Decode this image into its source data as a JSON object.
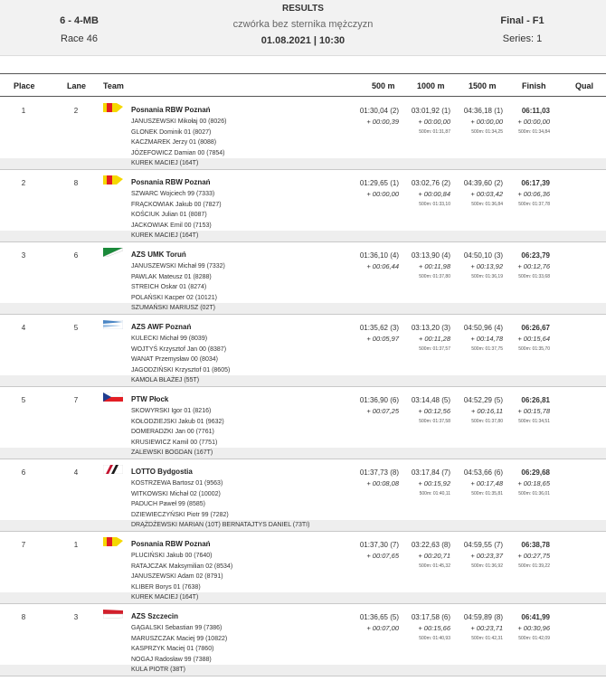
{
  "header": {
    "event_code": "6 - 4-MB",
    "race": "Race 46",
    "title": "RESULTS",
    "event_name": "czwórka bez sternika mężczyzn",
    "date_time": "01.08.2021 | 10:30",
    "final": "Final - F1",
    "series": "Series: 1"
  },
  "columns": {
    "place": "Place",
    "lane": "Lane",
    "team": "Team",
    "s500": "500 m",
    "s1000": "1000 m",
    "s1500": "1500 m",
    "finish": "Finish",
    "qual": "Qual"
  },
  "entries": [
    {
      "place": "1",
      "lane": "2",
      "flag": "poznan",
      "crew": "Posnania RBW Poznań",
      "athletes": [
        "JANUSZEWSKI  Mikołaj 00 (8026)",
        "GLONEK  Dominik 01 (8027)",
        "KACZMAREK  Jerzy 01 (8088)",
        "JÓZEFOWICZ  Damian 00 (7854)"
      ],
      "coach": "KUREK MACIEJ (164T)",
      "splits": [
        {
          "time": "01:30,04 (2)",
          "delta": "+ 00:00,39",
          "pace": ""
        },
        {
          "time": "03:01,92 (1)",
          "delta": "+ 00:00,00",
          "pace": "500m: 01:31,87"
        },
        {
          "time": "04:36,18 (1)",
          "delta": "+ 00:00,00",
          "pace": "500m: 01:34,25"
        },
        {
          "time": "06:11,03",
          "delta": "+ 00:00,00",
          "pace": "500m: 01:34,84"
        }
      ]
    },
    {
      "place": "2",
      "lane": "8",
      "flag": "poznan",
      "crew": "Posnania RBW Poznań",
      "athletes": [
        "SZWARC  Wojciech 99 (7333)",
        "FRĄCKOWIAK  Jakub 00 (7827)",
        "KOŚCIUK  Julian 01 (8087)",
        "JACKOWIAK  Emil 00 (7153)"
      ],
      "coach": "KUREK MACIEJ (164T)",
      "splits": [
        {
          "time": "01:29,65 (1)",
          "delta": "+ 00:00,00",
          "pace": ""
        },
        {
          "time": "03:02,76 (2)",
          "delta": "+ 00:00,84",
          "pace": "500m: 01:33,10"
        },
        {
          "time": "04:39,60 (2)",
          "delta": "+ 00:03,42",
          "pace": "500m: 01:36,84"
        },
        {
          "time": "06:17,39",
          "delta": "+ 00:06,36",
          "pace": "500m: 01:37,78"
        }
      ]
    },
    {
      "place": "3",
      "lane": "6",
      "flag": "torun",
      "crew": "AZS UMK Toruń",
      "athletes": [
        "JANUSZEWSKI  Michał 99 (7332)",
        "PAWLAK  Mateusz 01 (8288)",
        "STREICH  Oskar 01 (8274)",
        "POLAŃSKI  Kacper 02 (10121)"
      ],
      "coach": "SZUMAŃSKI MARIUSZ (02T)",
      "splits": [
        {
          "time": "01:36,10 (4)",
          "delta": "+ 00:06,44",
          "pace": ""
        },
        {
          "time": "03:13,90 (4)",
          "delta": "+ 00:11,98",
          "pace": "500m: 01:37,80"
        },
        {
          "time": "04:50,10 (3)",
          "delta": "+ 00:13,92",
          "pace": "500m: 01:36,19"
        },
        {
          "time": "06:23,79",
          "delta": "+ 00:12,76",
          "pace": "500m: 01:33,68"
        }
      ]
    },
    {
      "place": "4",
      "lane": "5",
      "flag": "awf",
      "crew": "AZS AWF Poznań",
      "athletes": [
        "KULECKI  Michał 99 (8039)",
        "WOJTYŚ  Krzysztof Jan 00 (8387)",
        "WANAT  Przemysław 00 (8034)",
        "JAGODZIŃSKI  Krzysztof 01 (8605)"
      ],
      "coach": "KAMOLA BŁAŻEJ (55T)",
      "splits": [
        {
          "time": "01:35,62 (3)",
          "delta": "+ 00:05,97",
          "pace": ""
        },
        {
          "time": "03:13,20 (3)",
          "delta": "+ 00:11,28",
          "pace": "500m: 01:37,57"
        },
        {
          "time": "04:50,96 (4)",
          "delta": "+ 00:14,78",
          "pace": "500m: 01:37,75"
        },
        {
          "time": "06:26,67",
          "delta": "+ 00:15,64",
          "pace": "500m: 01:35,70"
        }
      ]
    },
    {
      "place": "5",
      "lane": "7",
      "flag": "plock",
      "crew": "PTW Płock",
      "athletes": [
        "SKOWYRSKI  Igor 01 (8216)",
        "KOŁODZIEJSKI  Jakub 01 (9632)",
        "DOMERADZKI  Jan 00 (7761)",
        "KRUSIEWICZ  Kamil 00 (7751)"
      ],
      "coach": "ZALEWSKI BOGDAN (167T)",
      "splits": [
        {
          "time": "01:36,90 (6)",
          "delta": "+ 00:07,25",
          "pace": ""
        },
        {
          "time": "03:14,48 (5)",
          "delta": "+ 00:12,56",
          "pace": "500m: 01:37,58"
        },
        {
          "time": "04:52,29 (5)",
          "delta": "+ 00:16,11",
          "pace": "500m: 01:37,80"
        },
        {
          "time": "06:26,81",
          "delta": "+ 00:15,78",
          "pace": "500m: 01:34,51"
        }
      ]
    },
    {
      "place": "6",
      "lane": "4",
      "flag": "lotto",
      "crew": "LOTTO Bydgostia",
      "athletes": [
        "KOSTRZEWA  Bartosz 01 (9563)",
        "WITKOWSKI  Michał 02 (10002)",
        "PADUCH  Paweł 99 (8585)",
        "DZIEWIECZYŃSKI  Piotr 99 (7282)"
      ],
      "coach": "DRĄŻDŻEWSKI MARIAN (10T) BERNATAJTYS DANIEL (73TI)",
      "splits": [
        {
          "time": "01:37,73 (8)",
          "delta": "+ 00:08,08",
          "pace": ""
        },
        {
          "time": "03:17,84 (7)",
          "delta": "+ 00:15,92",
          "pace": "500m: 01:40,11"
        },
        {
          "time": "04:53,66 (6)",
          "delta": "+ 00:17,48",
          "pace": "500m: 01:35,81"
        },
        {
          "time": "06:29,68",
          "delta": "+ 00:18,65",
          "pace": "500m: 01:36,01"
        }
      ]
    },
    {
      "place": "7",
      "lane": "1",
      "flag": "poznan",
      "crew": "Posnania RBW Poznań",
      "athletes": [
        "PLUCIŃSKI  Jakub 00 (7640)",
        "RATAJCZAK  Maksymilian 02 (8534)",
        "JANUSZEWSKI  Adam 02 (8791)",
        "KLIBER  Borys 01 (7638)"
      ],
      "coach": "KUREK MACIEJ (164T)",
      "splits": [
        {
          "time": "01:37,30 (7)",
          "delta": "+ 00:07,65",
          "pace": ""
        },
        {
          "time": "03:22,63 (8)",
          "delta": "+ 00:20,71",
          "pace": "500m: 01:45,32"
        },
        {
          "time": "04:59,55 (7)",
          "delta": "+ 00:23,37",
          "pace": "500m: 01:36,92"
        },
        {
          "time": "06:38,78",
          "delta": "+ 00:27,75",
          "pace": "500m: 01:39,22"
        }
      ]
    },
    {
      "place": "8",
      "lane": "3",
      "flag": "szczecin",
      "crew": "AZS Szczecin",
      "athletes": [
        "GĄGALSKI  Sebastian 99 (7386)",
        "MARUSZCZAK  Maciej 99 (10822)",
        "KASPRZYK  Maciej 01 (7860)",
        "NOGAJ  Radosław 99 (7388)"
      ],
      "coach": "KULA PIOTR (38T)",
      "splits": [
        {
          "time": "01:36,65 (5)",
          "delta": "+ 00:07,00",
          "pace": ""
        },
        {
          "time": "03:17,58 (6)",
          "delta": "+ 00:15,66",
          "pace": "500m: 01:40,93"
        },
        {
          "time": "04:59,89 (8)",
          "delta": "+ 00:23,71",
          "pace": "500m: 01:42,31"
        },
        {
          "time": "06:41,99",
          "delta": "+ 00:30,96",
          "pace": "500m: 01:42,09"
        }
      ]
    }
  ]
}
